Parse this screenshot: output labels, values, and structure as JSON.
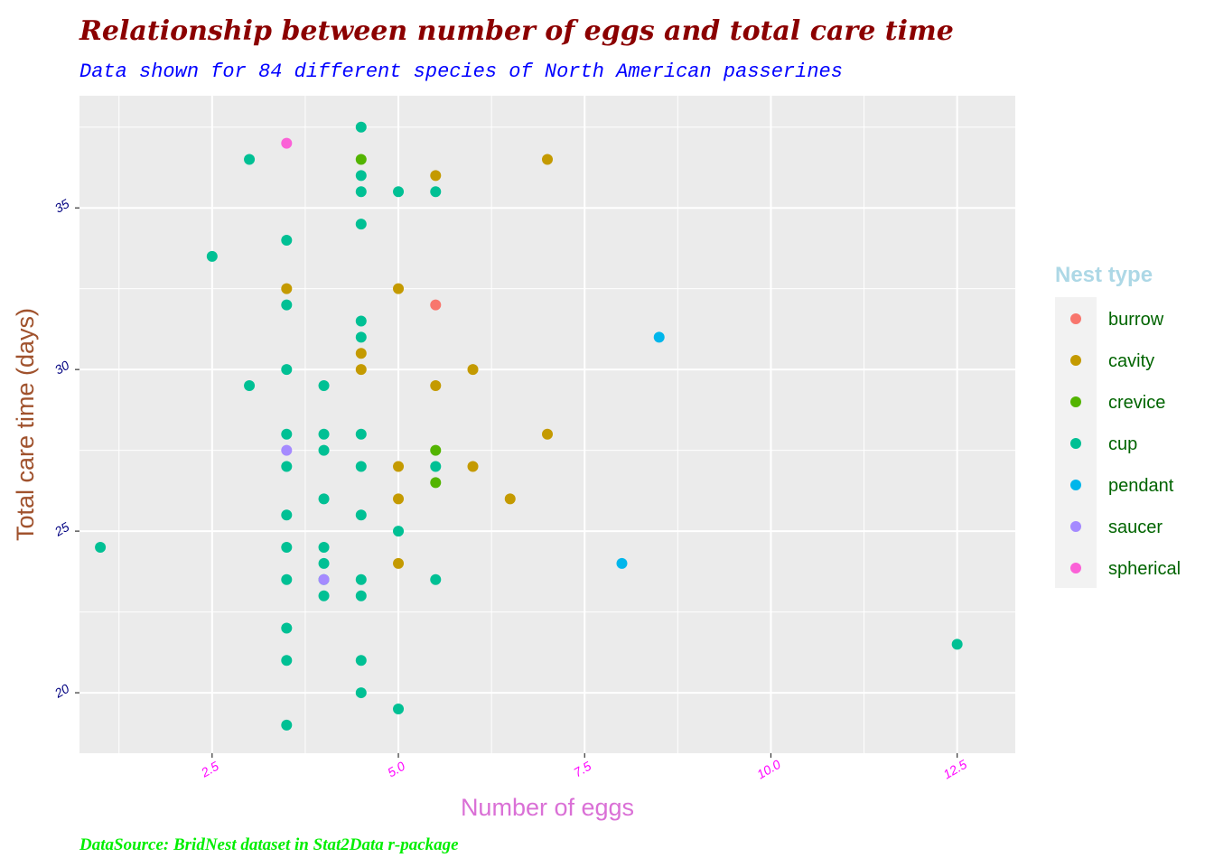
{
  "title": "Relationship between number of eggs and total care time",
  "subtitle": "Data shown for 84 different species of North American passerines",
  "caption": "DataSource: BridNest dataset in Stat2Data r-package",
  "chart_data": {
    "type": "scatter",
    "xlabel": "Number of eggs",
    "ylabel": "Total care time (days)",
    "xlim": [
      0.72,
      13.28
    ],
    "ylim": [
      18.13,
      38.47
    ],
    "x_ticks": [
      2.5,
      5.0,
      7.5,
      10.0,
      12.5
    ],
    "x_tick_labels": [
      "2.5",
      "5.0",
      "7.5",
      "10.0",
      "12.5"
    ],
    "y_ticks": [
      20,
      25,
      30,
      35
    ],
    "y_tick_labels": [
      "20",
      "25",
      "30",
      "35"
    ],
    "grid": true,
    "legend": {
      "title": "Nest type",
      "position": "right",
      "entries": [
        "burrow",
        "cavity",
        "crevice",
        "cup",
        "pendant",
        "saucer",
        "spherical"
      ]
    },
    "colors": {
      "burrow": "#F8766D",
      "cavity": "#C49A00",
      "crevice": "#53B400",
      "cup": "#00C094",
      "pendant": "#00B6EB",
      "saucer": "#A58AFF",
      "spherical": "#FB61D7"
    },
    "series": [
      {
        "name": "burrow",
        "points": [
          [
            5.5,
            32
          ]
        ]
      },
      {
        "name": "cavity",
        "points": [
          [
            3.5,
            32.5
          ],
          [
            4.5,
            30.5
          ],
          [
            4.5,
            30
          ],
          [
            5.0,
            32.5
          ],
          [
            5.0,
            27
          ],
          [
            5.0,
            26
          ],
          [
            5.0,
            24
          ],
          [
            5.5,
            36
          ],
          [
            5.5,
            29.5
          ],
          [
            6.0,
            30
          ],
          [
            6.0,
            27
          ],
          [
            6.5,
            26
          ],
          [
            7.0,
            36.5
          ],
          [
            7.0,
            28
          ]
        ]
      },
      {
        "name": "crevice",
        "points": [
          [
            4.5,
            36.5
          ],
          [
            5.5,
            27.5
          ],
          [
            5.5,
            26.5
          ]
        ]
      },
      {
        "name": "cup",
        "points": [
          [
            1.0,
            24.5
          ],
          [
            2.5,
            33.5
          ],
          [
            3.0,
            36.5
          ],
          [
            3.0,
            29.5
          ],
          [
            3.5,
            34
          ],
          [
            3.5,
            32
          ],
          [
            3.5,
            30
          ],
          [
            3.5,
            28
          ],
          [
            3.5,
            27
          ],
          [
            3.5,
            25.5
          ],
          [
            3.5,
            24.5
          ],
          [
            3.5,
            23.5
          ],
          [
            3.5,
            22
          ],
          [
            3.5,
            21
          ],
          [
            3.5,
            19
          ],
          [
            4.0,
            29.5
          ],
          [
            4.0,
            28
          ],
          [
            4.0,
            27.5
          ],
          [
            4.0,
            26
          ],
          [
            4.0,
            24.5
          ],
          [
            4.0,
            24
          ],
          [
            4.0,
            23.5
          ],
          [
            4.0,
            23
          ],
          [
            4.5,
            37.5
          ],
          [
            4.5,
            36
          ],
          [
            4.5,
            35.5
          ],
          [
            4.5,
            34.5
          ],
          [
            4.5,
            31.5
          ],
          [
            4.5,
            31
          ],
          [
            4.5,
            28
          ],
          [
            4.5,
            27
          ],
          [
            4.5,
            25.5
          ],
          [
            4.5,
            23.5
          ],
          [
            4.5,
            23
          ],
          [
            4.5,
            21
          ],
          [
            4.5,
            20
          ],
          [
            5.0,
            35.5
          ],
          [
            5.0,
            25
          ],
          [
            5.0,
            19.5
          ],
          [
            5.5,
            35.5
          ],
          [
            5.5,
            27
          ],
          [
            5.5,
            23.5
          ],
          [
            12.5,
            21.5
          ]
        ]
      },
      {
        "name": "pendant",
        "points": [
          [
            8.0,
            24
          ],
          [
            8.5,
            31
          ]
        ]
      },
      {
        "name": "saucer",
        "points": [
          [
            3.5,
            27.5
          ],
          [
            4.0,
            23.5
          ]
        ]
      },
      {
        "name": "spherical",
        "points": [
          [
            3.5,
            37
          ]
        ]
      }
    ]
  }
}
